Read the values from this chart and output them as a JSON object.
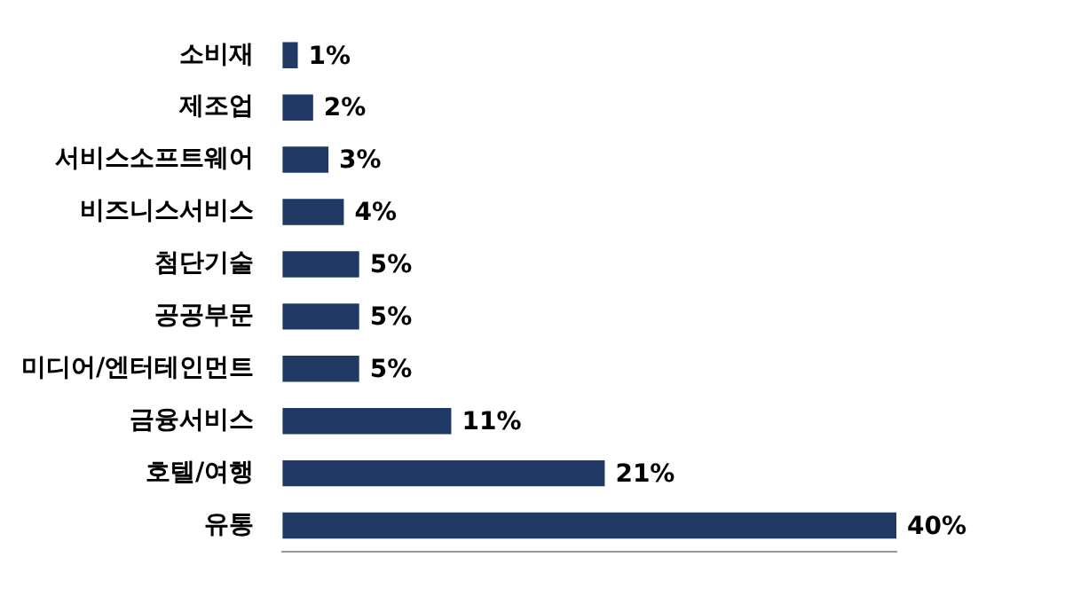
{
  "chart_data": {
    "type": "bar",
    "orientation": "horizontal",
    "categories": [
      "소비재",
      "제조업",
      "서비스소프트웨어",
      "비즈니스서비스",
      "첨단기술",
      "공공부문",
      "미디어/엔터테인먼트",
      "금융서비스",
      "호텔/여행",
      "유통"
    ],
    "values": [
      1,
      2,
      3,
      4,
      5,
      5,
      5,
      11,
      21,
      40
    ],
    "value_labels": [
      "1%",
      "2%",
      "3%",
      "4%",
      "5%",
      "5%",
      "5%",
      "11%",
      "21%",
      "40%"
    ],
    "color": "#1f3864",
    "tick_labels": "y",
    "grid": false,
    "legend": false
  }
}
